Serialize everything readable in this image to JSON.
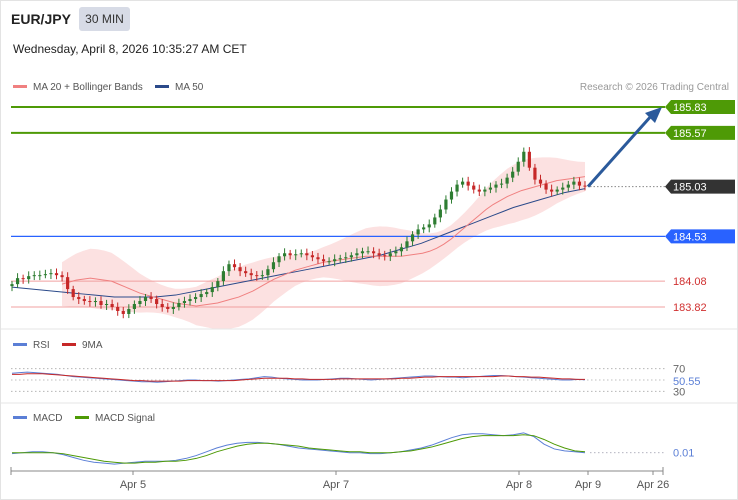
{
  "header": {
    "symbol": "EUR/JPY",
    "timeframe": "30 MIN",
    "datetime": "Wednesday, April 8, 2026 10:35:27 AM CET"
  },
  "legend": {
    "ma20": "MA 20 + Bollinger Bands",
    "ma50": "MA 50",
    "credit": "Research © 2026 Trading Central",
    "rsi": "RSI",
    "rsi_ma": "9MA",
    "macd": "MACD",
    "macd_signal": "MACD Signal"
  },
  "colors": {
    "resistance": "#4e9a06",
    "support": "#2962ff",
    "level_red": "#e05050",
    "current": "#333333",
    "arrow": "#2b5a9b",
    "bollinger": "#fbdcdc",
    "ma20": "#f08080",
    "ma50": "#2b4a8a",
    "candle_up": "#2e7d32",
    "candle_down": "#c62828",
    "rsi": "#5b7fd6",
    "rsi_ma": "#c62828",
    "macd": "#5b7fd6",
    "macd_signal": "#4e9a06"
  },
  "chart_data": [
    {
      "type": "candlestick",
      "title": "EUR/JPY",
      "x_ticks": [
        "Apr 5",
        "Apr 7",
        "Apr 8",
        "Apr 9",
        "Apr 26"
      ],
      "levels": [
        {
          "price": 185.83,
          "label": "185.83",
          "kind": "resistance"
        },
        {
          "price": 185.57,
          "label": "185.57",
          "kind": "resistance"
        },
        {
          "price": 185.03,
          "label": "185.03",
          "kind": "current"
        },
        {
          "price": 184.53,
          "label": "184.53",
          "kind": "support"
        },
        {
          "price": 184.08,
          "label": "184.08",
          "kind": "level"
        },
        {
          "price": 183.82,
          "label": "183.82",
          "kind": "level"
        }
      ],
      "close": [
        184.05,
        184.11,
        184.1,
        184.13,
        184.14,
        184.14,
        184.15,
        184.16,
        184.14,
        184.12,
        184.0,
        183.92,
        183.9,
        183.88,
        183.87,
        183.88,
        183.84,
        183.85,
        183.82,
        183.78,
        183.75,
        183.8,
        183.85,
        183.88,
        183.92,
        183.9,
        183.85,
        183.82,
        183.8,
        183.82,
        183.86,
        183.88,
        183.9,
        183.92,
        183.95,
        183.97,
        184.02,
        184.08,
        184.18,
        184.25,
        184.22,
        184.18,
        184.16,
        184.14,
        184.13,
        184.14,
        184.2,
        184.27,
        184.33,
        184.36,
        184.34,
        184.35,
        184.36,
        184.34,
        184.32,
        184.3,
        184.28,
        184.28,
        184.3,
        184.31,
        184.32,
        184.34,
        184.36,
        184.38,
        184.38,
        184.36,
        184.34,
        184.33,
        184.36,
        184.38,
        184.42,
        184.48,
        184.55,
        184.6,
        184.62,
        184.65,
        184.72,
        184.8,
        184.9,
        184.98,
        185.05,
        185.08,
        185.04,
        185.0,
        184.98,
        185.0,
        185.02,
        185.05,
        185.06,
        185.12,
        185.18,
        185.28,
        185.38,
        185.22,
        185.1,
        185.06,
        185.0,
        184.98,
        185.0,
        185.02,
        185.05,
        185.08,
        185.04,
        185.03
      ],
      "ma20": [
        184.05,
        184.07,
        184.09,
        184.1,
        184.11,
        184.1,
        184.09,
        184.08,
        184.05,
        184.02,
        183.99,
        183.96,
        183.94,
        183.92,
        183.9,
        183.88,
        183.86,
        183.85,
        183.84,
        183.83,
        183.84,
        183.85,
        183.86,
        183.88,
        183.9,
        183.92,
        183.95,
        183.98,
        184.02,
        184.06,
        184.1,
        184.13,
        184.16,
        184.19,
        184.21,
        184.23,
        184.25,
        184.27,
        184.28,
        184.29,
        184.3,
        184.31,
        184.32,
        184.33,
        184.33,
        184.33,
        184.33,
        184.33,
        184.33,
        184.34,
        184.35,
        184.36,
        184.38,
        184.41,
        184.45,
        184.5,
        184.56,
        184.62,
        184.68,
        184.74,
        184.8,
        184.85,
        184.89,
        184.93,
        184.96,
        184.99,
        185.01,
        185.03,
        185.05,
        185.07,
        185.09,
        185.1,
        185.11,
        185.12,
        185.13
      ],
      "ma50": [
        184.02,
        184.01,
        184.0,
        183.99,
        183.98,
        183.97,
        183.96,
        183.95,
        183.94,
        183.93,
        183.92,
        183.92,
        183.92,
        183.92,
        183.92,
        183.93,
        183.94,
        183.96,
        183.98,
        184.0,
        184.02,
        184.04,
        184.06,
        184.08,
        184.1,
        184.12,
        184.14,
        184.16,
        184.18,
        184.2,
        184.22,
        184.24,
        184.26,
        184.28,
        184.3,
        184.32,
        184.34,
        184.37,
        184.4,
        184.43,
        184.46,
        184.5,
        184.54,
        184.58,
        184.62,
        184.66,
        184.7,
        184.74,
        184.78,
        184.82,
        184.85,
        184.88,
        184.91,
        184.94,
        184.97,
        184.99,
        185.01
      ]
    },
    {
      "type": "line",
      "title": "RSI",
      "y_ticks": [
        "70",
        "30"
      ],
      "current_label": "50.55",
      "series": [
        {
          "name": "RSI",
          "values": [
            62,
            63,
            64,
            63,
            62,
            61,
            60,
            58,
            56,
            55,
            54,
            53,
            52,
            51,
            50,
            49,
            48,
            47,
            47,
            46,
            47,
            48,
            49,
            50,
            50,
            49,
            49,
            48,
            49,
            50,
            51,
            52,
            54,
            56,
            55,
            53,
            52,
            51,
            50,
            50,
            50,
            51,
            52,
            53,
            53,
            52,
            51,
            50,
            51,
            52,
            53,
            54,
            55,
            56,
            57,
            57,
            56,
            55,
            55,
            54,
            55,
            56,
            57,
            58,
            58,
            57,
            56,
            55,
            54,
            53,
            52,
            51,
            50,
            50,
            51,
            50.55
          ]
        },
        {
          "name": "9MA",
          "values": [
            60,
            60,
            61,
            61,
            61,
            60,
            59,
            58,
            57,
            56,
            55,
            54,
            53,
            52,
            51,
            50,
            49,
            49,
            48,
            48,
            48,
            48,
            48,
            49,
            49,
            49,
            49,
            49,
            49,
            49,
            50,
            51,
            52,
            53,
            53,
            53,
            53,
            52,
            52,
            51,
            51,
            51,
            51,
            52,
            52,
            52,
            52,
            52,
            52,
            52,
            52,
            53,
            53,
            54,
            55,
            55,
            56,
            56,
            56,
            56,
            56,
            56,
            56,
            56,
            57,
            57,
            56,
            56,
            55,
            55,
            54,
            53,
            52,
            52,
            51,
            51
          ]
        }
      ]
    },
    {
      "type": "line",
      "title": "MACD",
      "current_label": "0.01",
      "series": [
        {
          "name": "MACD",
          "values": [
            0.0,
            0.01,
            0.02,
            0.02,
            0.01,
            -0.01,
            -0.04,
            -0.07,
            -0.09,
            -0.1,
            -0.11,
            -0.1,
            -0.09,
            -0.08,
            -0.08,
            -0.08,
            -0.07,
            -0.05,
            -0.02,
            0.02,
            0.06,
            0.09,
            0.11,
            0.12,
            0.12,
            0.11,
            0.1,
            0.08,
            0.06,
            0.05,
            0.04,
            0.03,
            0.02,
            0.01,
            0.01,
            0.0,
            0.0,
            0.01,
            0.02,
            0.04,
            0.06,
            0.09,
            0.13,
            0.17,
            0.2,
            0.21,
            0.21,
            0.2,
            0.19,
            0.2,
            0.22,
            0.18,
            0.1,
            0.05,
            0.03,
            0.02,
            0.01
          ]
        },
        {
          "name": "MACD Signal",
          "values": [
            0.01,
            0.01,
            0.01,
            0.01,
            0.01,
            0.0,
            -0.02,
            -0.04,
            -0.06,
            -0.08,
            -0.09,
            -0.1,
            -0.1,
            -0.09,
            -0.09,
            -0.08,
            -0.08,
            -0.07,
            -0.05,
            -0.02,
            0.02,
            0.05,
            0.08,
            0.1,
            0.11,
            0.11,
            0.1,
            0.09,
            0.08,
            0.06,
            0.05,
            0.04,
            0.03,
            0.02,
            0.02,
            0.01,
            0.01,
            0.01,
            0.02,
            0.03,
            0.05,
            0.07,
            0.1,
            0.13,
            0.16,
            0.18,
            0.19,
            0.19,
            0.19,
            0.19,
            0.2,
            0.19,
            0.15,
            0.1,
            0.06,
            0.03,
            0.02
          ]
        }
      ]
    }
  ]
}
